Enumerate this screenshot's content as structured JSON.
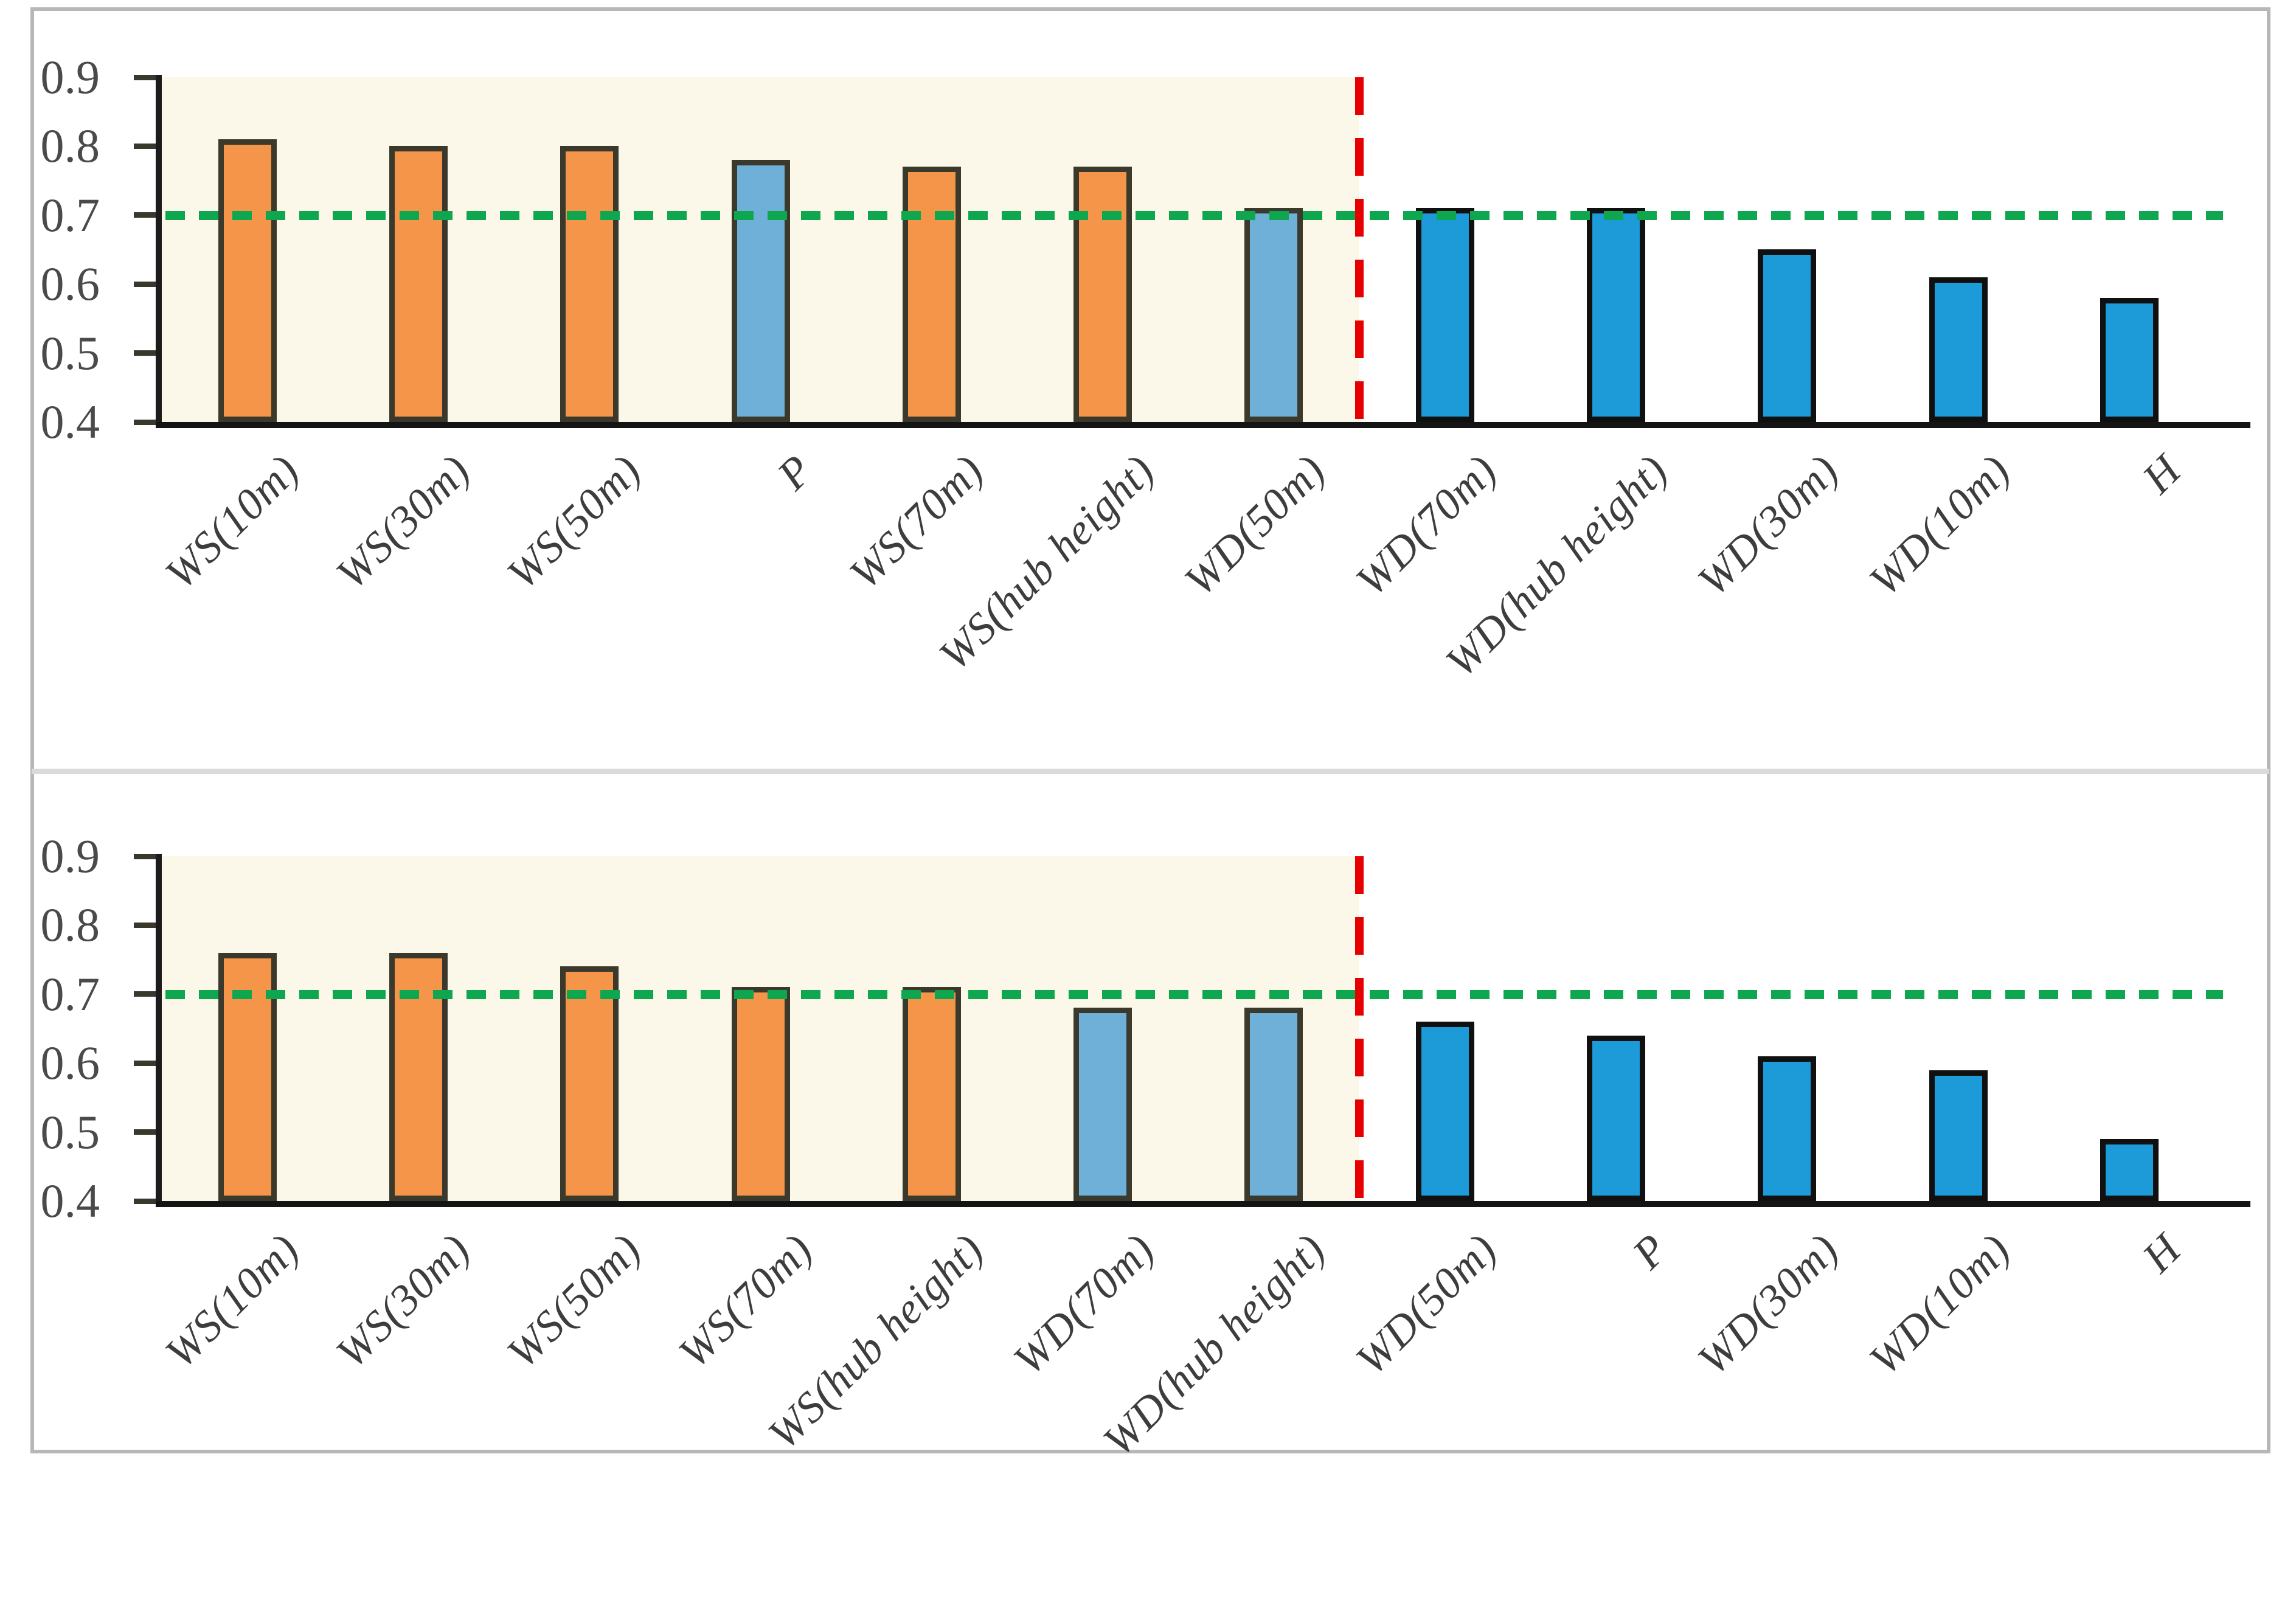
{
  "figure": {
    "background_color": "#ffffff",
    "frame_color": "#b7b7b7",
    "divider_color": "#dadada"
  },
  "colors": {
    "orange": {
      "fill": "#F5954A",
      "outline": "#3B392C"
    },
    "light_blue": {
      "fill": "#6FB0D9",
      "outline": "#3B392C"
    },
    "dark_blue": {
      "fill": "#1D9BD8",
      "outline": "#101010"
    },
    "reference_green": "#0EA750",
    "separator_red": "#E60000",
    "highlight_cream": "#FBF8E9"
  },
  "chart_data": [
    {
      "type": "bar",
      "title": "",
      "xlabel": "",
      "ylabel": "",
      "ylim": [
        0.4,
        0.9
      ],
      "ytick_labels": [
        "0.9",
        "0.8",
        "0.7",
        "0.6",
        "0.5",
        "0.4"
      ],
      "grid": false,
      "legend": false,
      "categories": [
        "WS(10m)",
        "WS(30m)",
        "WS(50m)",
        "P",
        "WS(70m)",
        "WS(hub height)",
        "WD(50m)",
        "WD(70m)",
        "WD(hub height)",
        "WD(30m)",
        "WD(10m)",
        "H"
      ],
      "values": [
        0.81,
        0.8,
        0.8,
        0.78,
        0.77,
        0.77,
        0.71,
        0.71,
        0.71,
        0.65,
        0.61,
        0.58
      ],
      "bar_groups": [
        "orange",
        "orange",
        "orange",
        "light_blue",
        "orange",
        "orange",
        "light_blue",
        "dark_blue",
        "dark_blue",
        "dark_blue",
        "dark_blue",
        "dark_blue"
      ],
      "reference_line": {
        "value": 0.7,
        "style": "dotted",
        "color": "#0EA750"
      },
      "separator": {
        "after_category_index": 7,
        "style": "dashed",
        "color": "#E60000"
      },
      "highlight_region": {
        "span": "left_of_separator",
        "color": "#FBF8E9"
      }
    },
    {
      "type": "bar",
      "title": "",
      "xlabel": "",
      "ylabel": "",
      "ylim": [
        0.4,
        0.9
      ],
      "ytick_labels": [
        "0.9",
        "0.8",
        "0.7",
        "0.6",
        "0.5",
        "0.4"
      ],
      "grid": false,
      "legend": false,
      "categories": [
        "WS(10m)",
        "WS(30m)",
        "WS(50m)",
        "WS(70m)",
        "WS(hub height)",
        "WD(70m)",
        "WD(hub height)",
        "WD(50m)",
        "P",
        "WD(30m)",
        "WD(10m)",
        "H"
      ],
      "values": [
        0.76,
        0.76,
        0.74,
        0.71,
        0.71,
        0.68,
        0.68,
        0.66,
        0.64,
        0.61,
        0.59,
        0.49
      ],
      "bar_groups": [
        "orange",
        "orange",
        "orange",
        "orange",
        "orange",
        "light_blue",
        "light_blue",
        "dark_blue",
        "dark_blue",
        "dark_blue",
        "dark_blue",
        "dark_blue"
      ],
      "reference_line": {
        "value": 0.7,
        "style": "dotted",
        "color": "#0EA750"
      },
      "separator": {
        "after_category_index": 7,
        "style": "dashed",
        "color": "#E60000"
      },
      "highlight_region": {
        "span": "left_of_separator",
        "color": "#FBF8E9"
      }
    }
  ]
}
